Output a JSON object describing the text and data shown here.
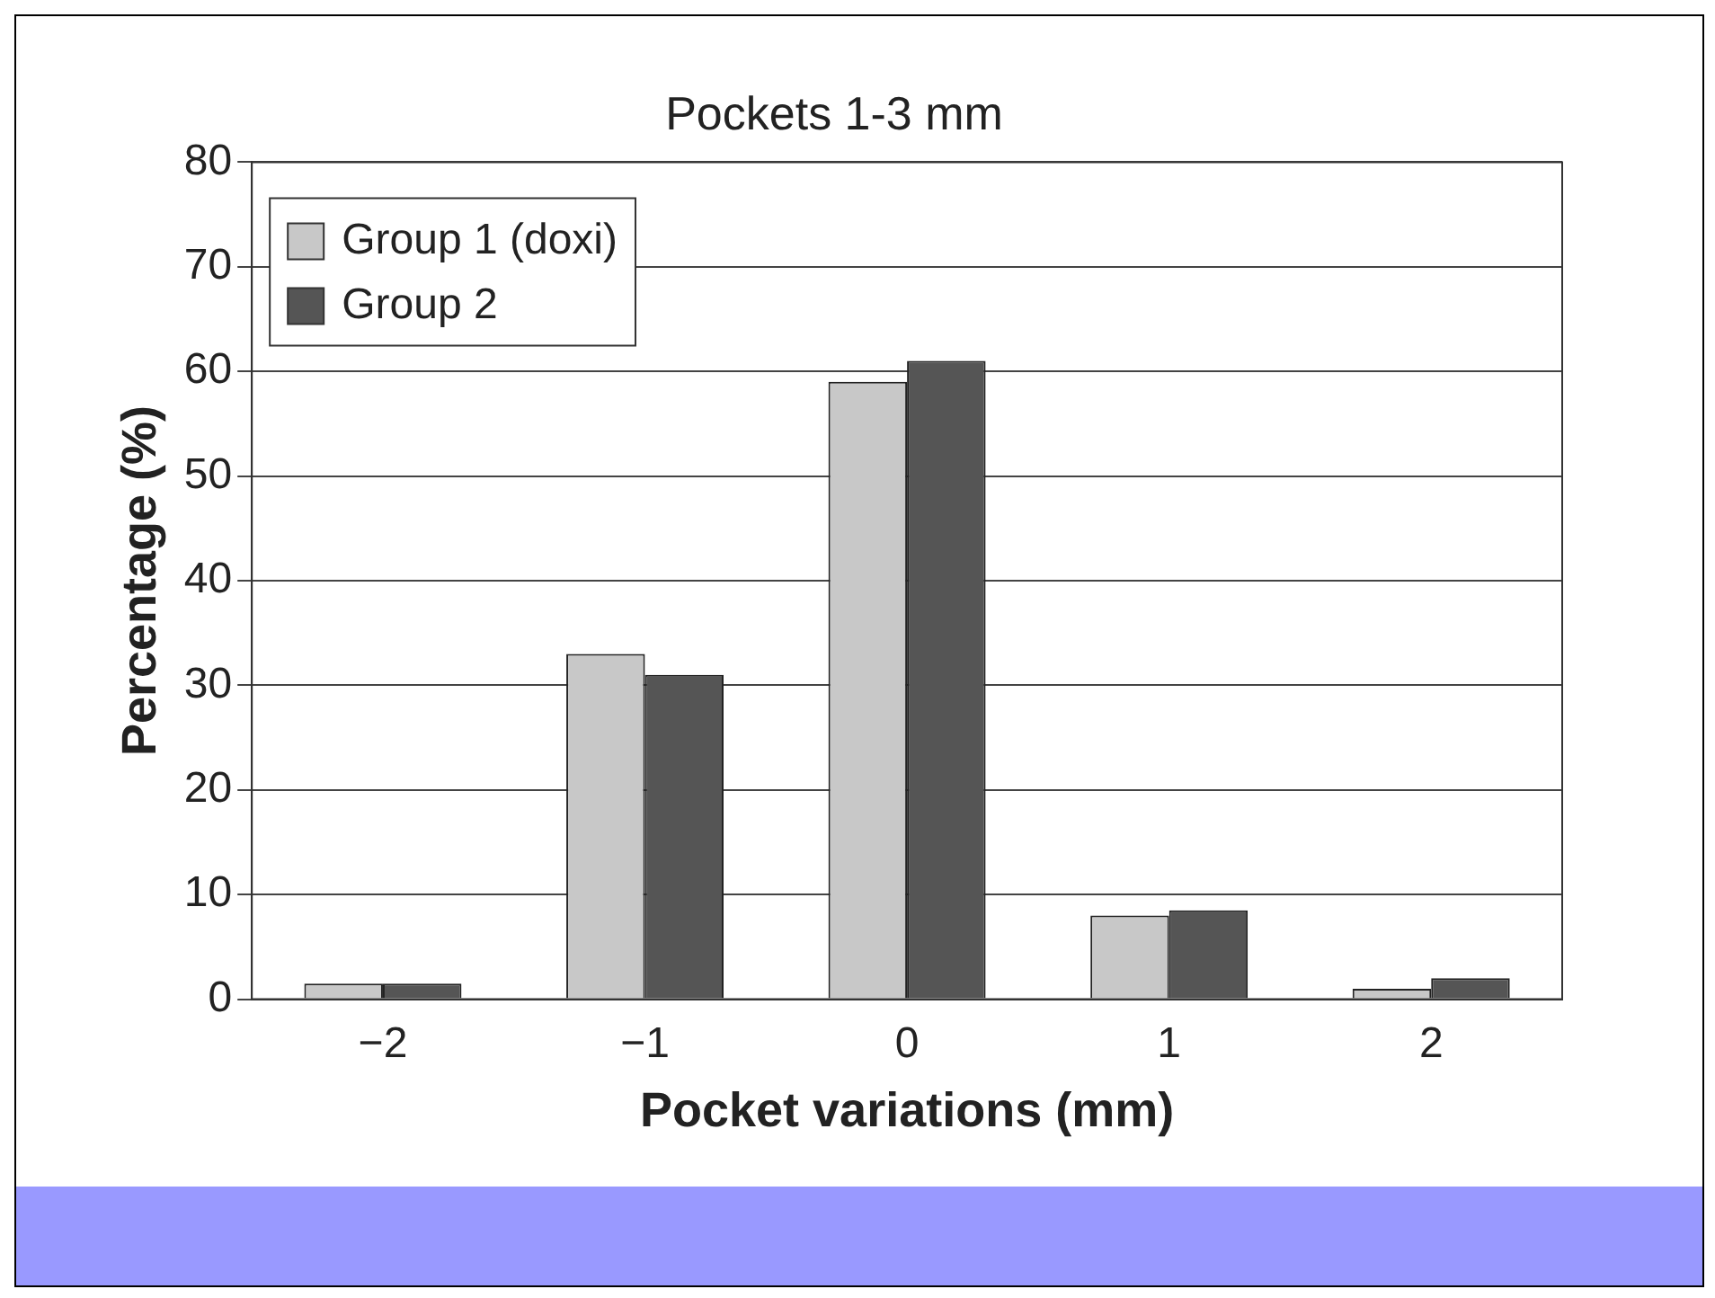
{
  "chart_data": {
    "type": "bar",
    "title": "Pockets 1-3 mm",
    "xlabel": "Pocket variations (mm)",
    "ylabel": "Percentage (%)",
    "categories": [
      "−2",
      "−1",
      "0",
      "1",
      "2"
    ],
    "series": [
      {
        "name": "Group 1 (doxi)",
        "color": "#c8c8c8",
        "values": [
          1.5,
          33,
          59,
          8,
          1
        ]
      },
      {
        "name": "Group 2",
        "color": "#555555",
        "values": [
          1.5,
          31,
          61,
          8.5,
          2
        ]
      }
    ],
    "ylim": [
      0,
      80
    ],
    "yticks": [
      0,
      10,
      20,
      30,
      40,
      50,
      60,
      70,
      80
    ],
    "grid": "y",
    "legend": "top left"
  }
}
